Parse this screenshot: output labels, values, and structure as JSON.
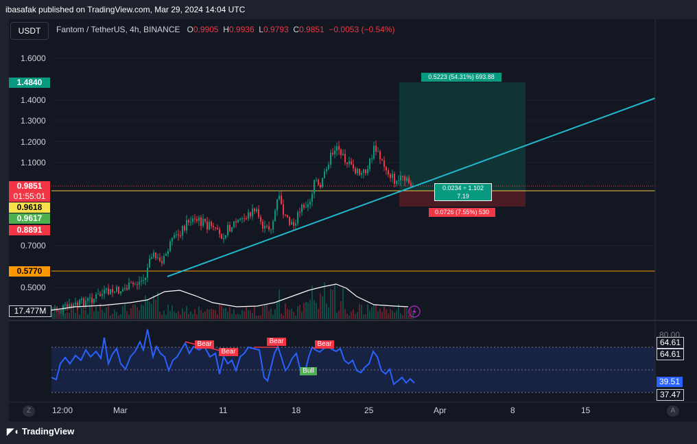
{
  "header": {
    "published": "ibasafak published on TradingView.com, Mar 29, 2024 14:04 UTC"
  },
  "toolbar": {
    "currency": "USDT"
  },
  "symbol": {
    "name": "Fantom / TetherUS, 4h, BINANCE",
    "o_label": "O",
    "o": "0.9905",
    "h_label": "H",
    "h": "0.9936",
    "l_label": "L",
    "l": "0.9793",
    "c_label": "C",
    "c": "0.9851",
    "change": "−0.0053 (−0.54%)"
  },
  "price_axis": [
    "1.6000",
    "1.4000",
    "1.3000",
    "1.2000",
    "1.1000",
    "0.7000",
    "0.5000"
  ],
  "price_tags": {
    "target": "1.4840",
    "current": "0.9851",
    "countdown": "01:55:01",
    "yellow": "0.9618",
    "green": "0.9617",
    "red": "0.8891",
    "orange": "0.5770",
    "volume": "17.477M"
  },
  "position_tool": {
    "profit_label": "0.5223 (54.31%) 693.88",
    "entry_label_1": "0.0234 ÷ 1.102",
    "entry_label_2": "7.19",
    "loss_label": "0.0726 (7.55%) 530"
  },
  "rsi": {
    "tags": [
      "80.00",
      "64.61",
      "64.61",
      "60.00",
      "39.51",
      "37.47"
    ],
    "signals": [
      "Bear",
      "Bear",
      "Bear",
      "Bear",
      "Bull"
    ]
  },
  "time_axis": [
    "12:00",
    "Mar",
    "11",
    "18",
    "25",
    "Apr",
    "8",
    "15"
  ],
  "footer": {
    "brand": "TradingView"
  },
  "colors": {
    "bg": "#131722",
    "up": "#089981",
    "down": "#f23645",
    "trendline": "#22b8cf",
    "rsi": "#2962ff"
  },
  "icons": [
    "flash-icon",
    "tradingview-logo-icon",
    "timezone-icon",
    "auto-scale-icon"
  ]
}
